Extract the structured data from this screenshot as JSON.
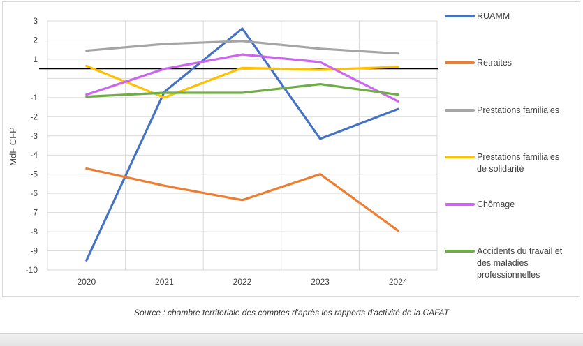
{
  "chart_data": {
    "type": "line",
    "title": "",
    "xlabel": "",
    "ylabel": "MdF CFP",
    "ylim": [
      -10,
      3
    ],
    "yticks": [
      3,
      2,
      1,
      -1,
      -2,
      -3,
      -4,
      -5,
      -6,
      -7,
      -8,
      -9,
      -10
    ],
    "reference_line": 0.5,
    "categories": [
      "2020",
      "2021",
      "2022",
      "2023",
      "2024"
    ],
    "series": [
      {
        "name": "RUAMM",
        "color": "#4472c4",
        "values": [
          -9.5,
          -0.7,
          2.6,
          -3.15,
          -1.6
        ]
      },
      {
        "name": "Retraites",
        "color": "#ed7d31",
        "values": [
          -4.7,
          -5.6,
          -6.35,
          -5.0,
          -7.95
        ]
      },
      {
        "name": "Prestations familiales",
        "color": "#a5a5a5",
        "values": [
          1.45,
          1.8,
          1.95,
          1.55,
          1.3
        ]
      },
      {
        "name": "Prestations familiales de solidarité",
        "color": "#ffc000",
        "values": [
          0.65,
          -1.0,
          0.55,
          0.45,
          0.6
        ]
      },
      {
        "name": "Chômage",
        "color": "#cc66ee",
        "values": [
          -0.85,
          0.5,
          1.25,
          0.85,
          -1.2
        ]
      },
      {
        "name": "Accidents du travail et des maladies professionnelles",
        "color": "#70ad47",
        "values": [
          -0.95,
          -0.75,
          -0.75,
          -0.3,
          -0.85
        ]
      }
    ],
    "legend": [
      {
        "lines": [
          "RUAMM"
        ]
      },
      {
        "lines": [
          "Retraites"
        ]
      },
      {
        "lines": [
          "Prestations familiales"
        ]
      },
      {
        "lines": [
          "Prestations familiales",
          "de solidarité"
        ]
      },
      {
        "lines": [
          "Chômage"
        ]
      },
      {
        "lines": [
          "Accidents du travail et",
          "des maladies",
          "professionnelles"
        ]
      }
    ]
  },
  "caption": "Source : chambre territoriale des comptes d'après les rapports d'activité de la CAFAT"
}
